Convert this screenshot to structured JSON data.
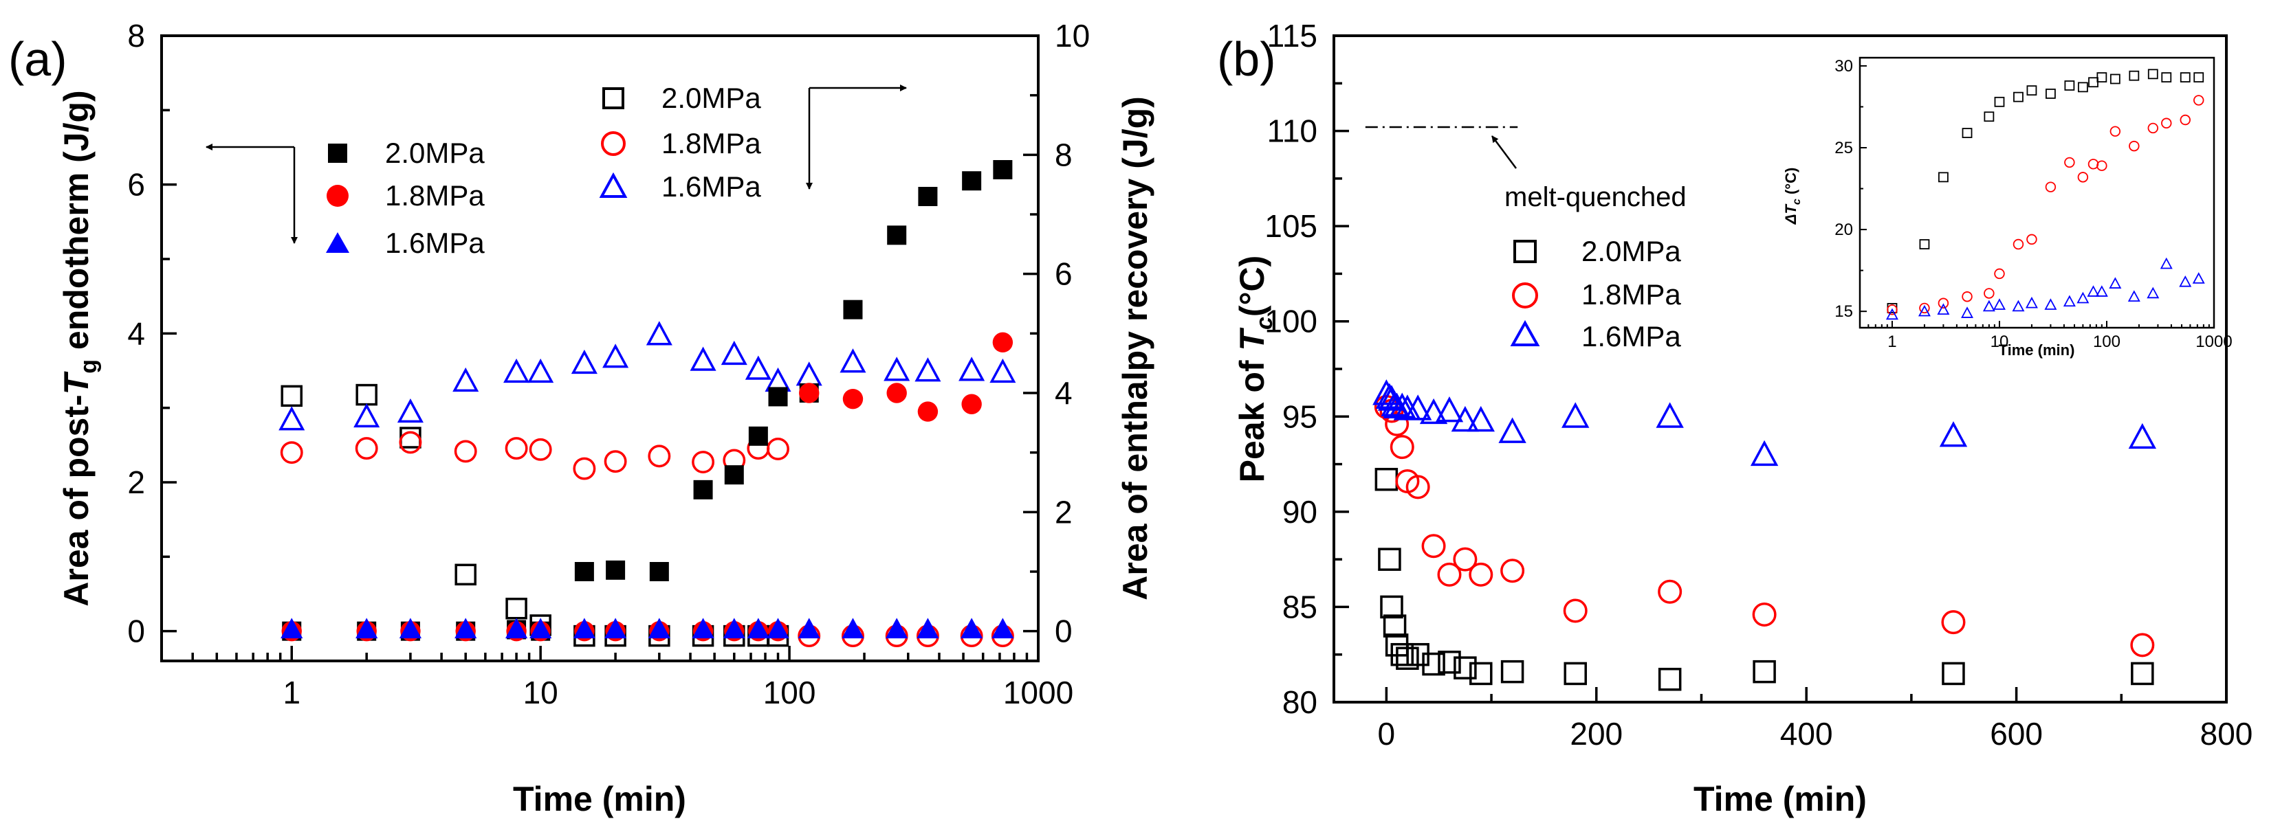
{
  "chart_data": [
    {
      "panel": "(a)",
      "type": "scatter",
      "xscale": "log",
      "xlabel": "Time (min)",
      "xlim": [
        0.3,
        1000
      ],
      "xticks": [
        "1",
        "10",
        "100",
        "1000"
      ],
      "ylabel_left": {
        "pre": "Area of post-",
        "sym": "T",
        "sub": "g",
        "post": " endotherm (J/g)"
      },
      "ylim_left": [
        -0.4,
        8
      ],
      "yticks_left": [
        "0",
        "2",
        "4",
        "6",
        "8"
      ],
      "ylabel_right": "Area of  enthalpy recovery (J/g)",
      "ylim_right": [
        -0.5,
        10
      ],
      "yticks_right": [
        "0",
        "2",
        "4",
        "6",
        "8",
        "10"
      ],
      "legend_left": [
        "2.0MPa",
        "1.8MPa",
        "1.6MPa"
      ],
      "legend_right": [
        "2.0MPa",
        "1.8MPa",
        "1.6MPa"
      ],
      "series": [
        {
          "name": "2.0MPa",
          "axis": "left",
          "marker": "square",
          "filled": true,
          "color": "#000000",
          "x": [
            1,
            2,
            3,
            5,
            8,
            10,
            15,
            20,
            30,
            45,
            60,
            75,
            90,
            120,
            180,
            270,
            360,
            540,
            720
          ],
          "y": [
            0.0,
            0.0,
            0.0,
            0.0,
            0.02,
            0.0,
            0.8,
            0.82,
            0.8,
            1.9,
            2.1,
            2.62,
            3.15,
            3.2,
            4.32,
            5.32,
            5.84,
            6.05,
            6.2
          ]
        },
        {
          "name": "1.8MPa",
          "axis": "left",
          "marker": "circle",
          "filled": true,
          "color": "#ff0000",
          "x": [
            1,
            2,
            3,
            5,
            8,
            10,
            15,
            20,
            30,
            45,
            60,
            75,
            90,
            120,
            180,
            270,
            360,
            540,
            720
          ],
          "y": [
            0,
            0,
            0,
            0,
            0,
            0,
            0,
            0,
            0,
            0,
            0,
            0,
            0,
            3.2,
            3.12,
            3.2,
            2.95,
            3.05,
            3.88
          ]
        },
        {
          "name": "1.6MPa",
          "axis": "left",
          "marker": "triangle",
          "filled": true,
          "color": "#0000ff",
          "x": [
            1,
            2,
            3,
            5,
            8,
            10,
            15,
            20,
            30,
            45,
            60,
            75,
            90,
            120,
            180,
            270,
            360,
            540,
            720
          ],
          "y": [
            0.03,
            0.03,
            0.03,
            0.03,
            0.03,
            0.03,
            0.03,
            0.03,
            0.03,
            0.03,
            0.03,
            0.03,
            0.03,
            0.03,
            0.03,
            0.03,
            0.03,
            0.03,
            0.03
          ]
        },
        {
          "name": "2.0MPa",
          "axis": "right",
          "marker": "square",
          "filled": false,
          "color": "#000000",
          "x": [
            1,
            2,
            3,
            5,
            8,
            10,
            15,
            20,
            30,
            45,
            60,
            75,
            90
          ],
          "y": [
            3.95,
            3.97,
            3.25,
            0.95,
            0.38,
            0.1,
            -0.08,
            -0.08,
            -0.08,
            -0.08,
            -0.08,
            -0.08,
            -0.08
          ]
        },
        {
          "name": "1.8MPa",
          "axis": "right",
          "marker": "circle",
          "filled": false,
          "color": "#ff0000",
          "x": [
            1,
            2,
            3,
            5,
            8,
            10,
            15,
            20,
            30,
            45,
            60,
            75,
            90,
            120,
            180,
            270,
            360,
            540,
            720
          ],
          "y": [
            3.0,
            3.07,
            3.17,
            3.02,
            3.07,
            3.05,
            2.73,
            2.85,
            2.94,
            2.84,
            2.87,
            3.07,
            3.06,
            -0.08,
            -0.08,
            -0.08,
            -0.08,
            -0.08,
            -0.08
          ]
        },
        {
          "name": "1.6MPa",
          "axis": "right",
          "marker": "triangle",
          "filled": false,
          "color": "#0000ff",
          "x": [
            1,
            2,
            3,
            5,
            8,
            10,
            15,
            20,
            30,
            45,
            60,
            75,
            90,
            120,
            180,
            270,
            360,
            540,
            720
          ],
          "y": [
            3.55,
            3.6,
            3.68,
            4.2,
            4.35,
            4.35,
            4.5,
            4.6,
            4.98,
            4.55,
            4.65,
            4.4,
            4.2,
            4.3,
            4.52,
            4.38,
            4.37,
            4.38,
            4.35
          ]
        }
      ]
    },
    {
      "panel": "(b)",
      "type": "scatter",
      "xlabel": "Time (min)",
      "xlim": [
        -50,
        800
      ],
      "xticks": [
        "0",
        "200",
        "400",
        "600",
        "800"
      ],
      "ylabel": {
        "pre": "Peak of ",
        "sym": "T",
        "sub": "c",
        "post": "(°C)"
      },
      "ylim": [
        80,
        115
      ],
      "yticks": [
        "80",
        "85",
        "90",
        "95",
        "100",
        "105",
        "110",
        "115"
      ],
      "reference_line": {
        "y": 110.2,
        "label": "melt-quenched"
      },
      "legend": [
        "2.0MPa",
        "1.8MPa",
        "1.6MPa"
      ],
      "series": [
        {
          "name": "2.0MPa",
          "marker": "square",
          "filled": false,
          "color": "#000000",
          "x": [
            0,
            3,
            5,
            8,
            10,
            15,
            20,
            30,
            45,
            60,
            75,
            90,
            120,
            180,
            270,
            360,
            540,
            720
          ],
          "y": [
            91.7,
            87.5,
            85.0,
            84.0,
            83.0,
            82.5,
            82.3,
            82.5,
            82.0,
            82.1,
            81.8,
            81.5,
            81.6,
            81.5,
            81.2,
            81.6,
            81.5,
            81.5
          ]
        },
        {
          "name": "1.8MPa",
          "marker": "circle",
          "filled": false,
          "color": "#ff0000",
          "x": [
            0,
            5,
            10,
            15,
            20,
            30,
            45,
            60,
            75,
            90,
            120,
            180,
            270,
            360,
            540,
            720
          ],
          "y": [
            95.5,
            95.3,
            94.6,
            93.4,
            91.6,
            91.3,
            88.2,
            86.7,
            87.5,
            86.7,
            86.9,
            84.8,
            85.8,
            84.6,
            84.2,
            83.0
          ]
        },
        {
          "name": "1.6MPa",
          "marker": "triangle",
          "filled": false,
          "color": "#0000ff",
          "x": [
            0,
            3,
            5,
            8,
            10,
            15,
            20,
            30,
            45,
            60,
            75,
            90,
            120,
            180,
            270,
            360,
            540,
            720
          ],
          "y": [
            96.2,
            96.0,
            95.9,
            95.6,
            95.5,
            95.5,
            95.4,
            95.4,
            95.2,
            95.3,
            94.8,
            94.8,
            94.2,
            95.0,
            95.0,
            93.0,
            94.0,
            93.9
          ]
        }
      ],
      "inset": {
        "type": "scatter",
        "xscale": "log",
        "xlabel": "Time (min)",
        "ylabel": {
          "sym": "ΔT",
          "sub": "c",
          "post": " (°C)"
        },
        "xlim": [
          0.5,
          1000
        ],
        "xticks": [
          "1",
          "10",
          "100",
          "1000"
        ],
        "ylim": [
          14,
          30.5
        ],
        "yticks": [
          "15",
          "20",
          "25",
          "30"
        ],
        "series": [
          {
            "name": "2.0MPa",
            "marker": "square",
            "color": "#000000",
            "x": [
              1,
              2,
              3,
              5,
              8,
              10,
              15,
              20,
              30,
              45,
              60,
              75,
              90,
              120,
              180,
              270,
              360,
              540,
              720
            ],
            "y": [
              15.2,
              19.1,
              23.2,
              25.9,
              26.9,
              27.8,
              28.1,
              28.5,
              28.3,
              28.8,
              28.7,
              29.0,
              29.3,
              29.2,
              29.4,
              29.5,
              29.3,
              29.3,
              29.3
            ]
          },
          {
            "name": "1.8MPa",
            "marker": "circle",
            "color": "#ff0000",
            "x": [
              1,
              2,
              3,
              5,
              8,
              10,
              15,
              20,
              30,
              45,
              60,
              75,
              90,
              120,
              180,
              270,
              360,
              540,
              720
            ],
            "y": [
              15.1,
              15.2,
              15.5,
              15.9,
              16.1,
              17.3,
              19.1,
              19.4,
              22.6,
              24.1,
              23.2,
              24.0,
              23.9,
              26.0,
              25.1,
              26.2,
              26.5,
              26.7,
              27.9
            ]
          },
          {
            "name": "1.6MPa",
            "marker": "triangle",
            "color": "#0000ff",
            "x": [
              1,
              2,
              3,
              5,
              8,
              10,
              15,
              20,
              30,
              45,
              60,
              75,
              90,
              120,
              180,
              270,
              360,
              540,
              720
            ],
            "y": [
              14.8,
              15.0,
              15.1,
              14.9,
              15.3,
              15.4,
              15.3,
              15.5,
              15.4,
              15.6,
              15.8,
              16.2,
              16.2,
              16.7,
              15.9,
              16.1,
              17.9,
              16.8,
              17.0
            ]
          }
        ]
      }
    }
  ]
}
